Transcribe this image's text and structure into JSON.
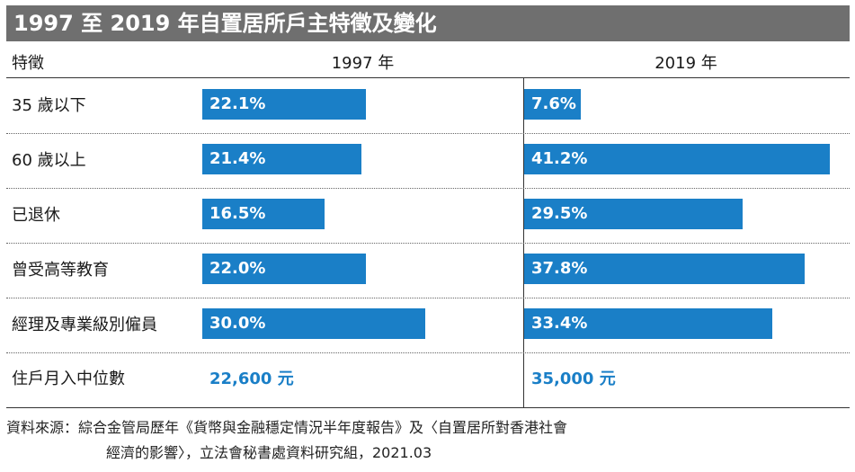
{
  "title": "1997 至 2019 年自置居所戶主特徵及變化",
  "header": {
    "label_col": "特徵",
    "col_1997": "1997 年",
    "col_2019": "2019 年"
  },
  "chart_data": {
    "type": "bar",
    "orientation": "horizontal",
    "categories": [
      "35 歲以下",
      "60 歲以上",
      "已退休",
      "曾受高等教育",
      "經理及專業級別僱員"
    ],
    "series": [
      {
        "name": "1997 年",
        "values": [
          22.1,
          21.4,
          16.5,
          22.0,
          30.0
        ],
        "labels": [
          "22.1%",
          "21.4%",
          "16.5%",
          "22.0%",
          "30.0%"
        ]
      },
      {
        "name": "2019 年",
        "values": [
          7.6,
          41.2,
          29.5,
          37.8,
          33.4
        ],
        "labels": [
          "7.6%",
          "41.2%",
          "29.5%",
          "37.8%",
          "33.4%"
        ]
      }
    ],
    "unit": "%",
    "xlim": [
      0,
      42
    ],
    "bar_color": "#1a7fc7"
  },
  "income_row": {
    "label": "住戶月入中位數",
    "value_1997": "22,600 元",
    "value_2019": "35,000 元"
  },
  "source": {
    "line1": "資料來源：綜合金管局歷年《貨幣與金融穩定情況半年度報告》及〈自置居所對香港社會",
    "line2": "經濟的影響〉，立法會秘書處資料研究組，2021.03"
  },
  "colors": {
    "title_bg": "#6f6f6f",
    "bar": "#1a7fc7",
    "income_text": "#1a7fc7"
  }
}
